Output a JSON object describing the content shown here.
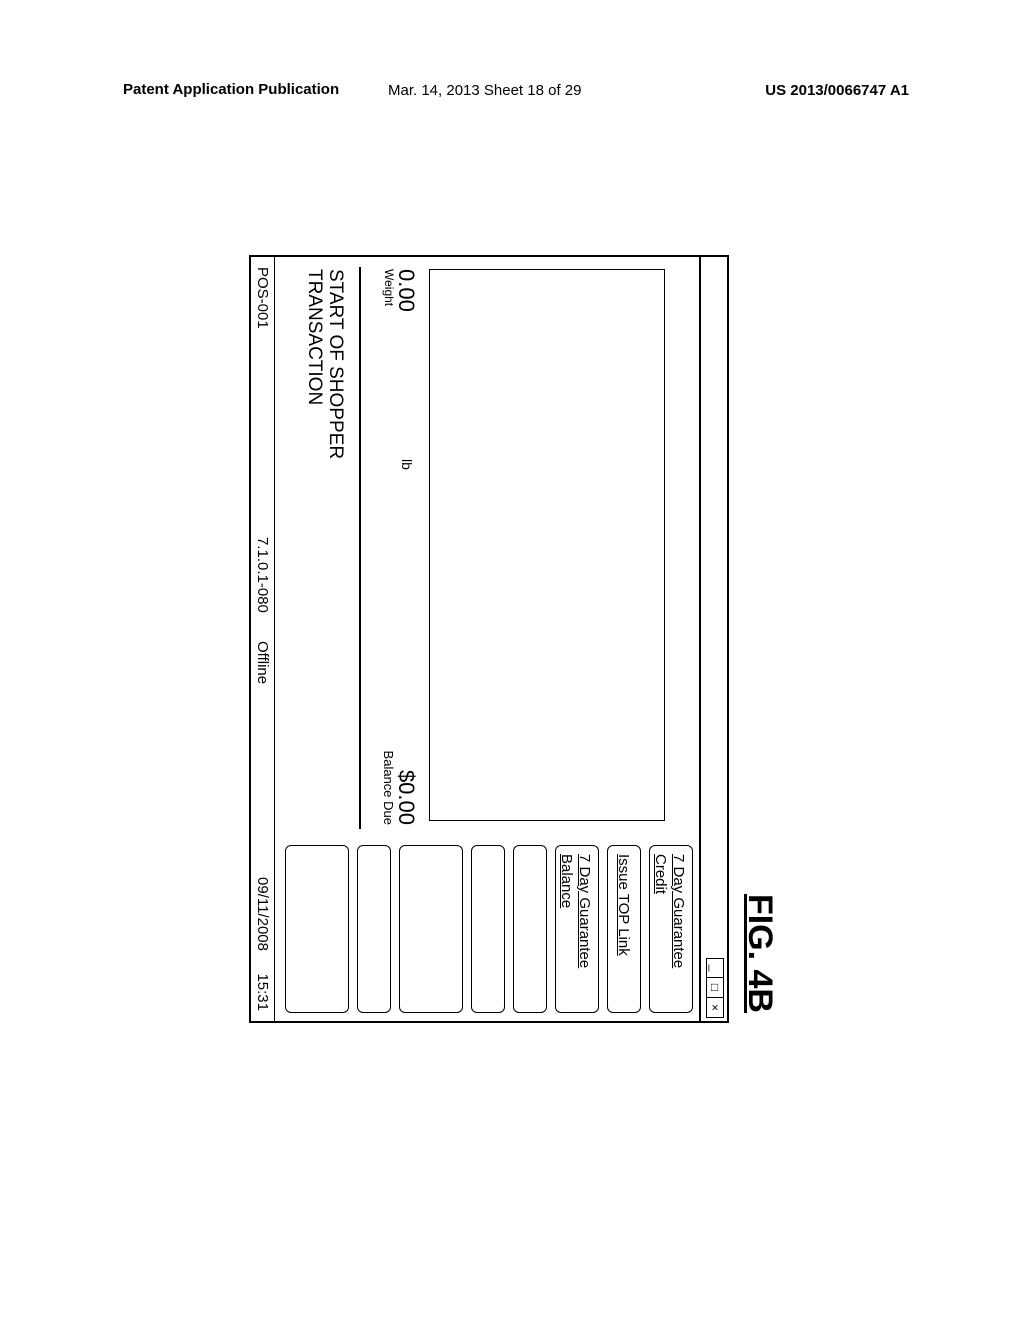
{
  "page_header": {
    "left": "Patent Application Publication",
    "center": "Mar. 14, 2013  Sheet 18 of 29",
    "right": "US 2013/0066747 A1"
  },
  "figure": {
    "label": "FIG. 4B"
  },
  "window": {
    "controls": {
      "min": "_",
      "max": "□",
      "close": "×"
    }
  },
  "sidebar": {
    "buttons": [
      {
        "line1": "7 Day Guarantee",
        "line2": "Credit"
      },
      {
        "line1": "Issue TOP Link",
        "line2": ""
      },
      {
        "line1": "7 Day Guarantee",
        "line2": "Balance"
      },
      {
        "line1": "",
        "line2": ""
      },
      {
        "line1": "",
        "line2": ""
      },
      {
        "line1": "",
        "line2": ""
      },
      {
        "line1": "",
        "line2": ""
      },
      {
        "line1": "",
        "line2": ""
      }
    ]
  },
  "info": {
    "weight_value": "0.00",
    "weight_label": "Weight",
    "weight_unit": "lb",
    "balance_value": "$0.00",
    "balance_label": "Balance Due"
  },
  "message": {
    "line1": "START OF SHOPPER",
    "line2": "TRANSACTION"
  },
  "status": {
    "terminal": "POS-001",
    "version": "7.1.0.1-080",
    "conn": "Offline",
    "date": "09/11/2008",
    "time": "15:31"
  },
  "colors": {
    "ink": "#000000",
    "paper": "#ffffff"
  }
}
